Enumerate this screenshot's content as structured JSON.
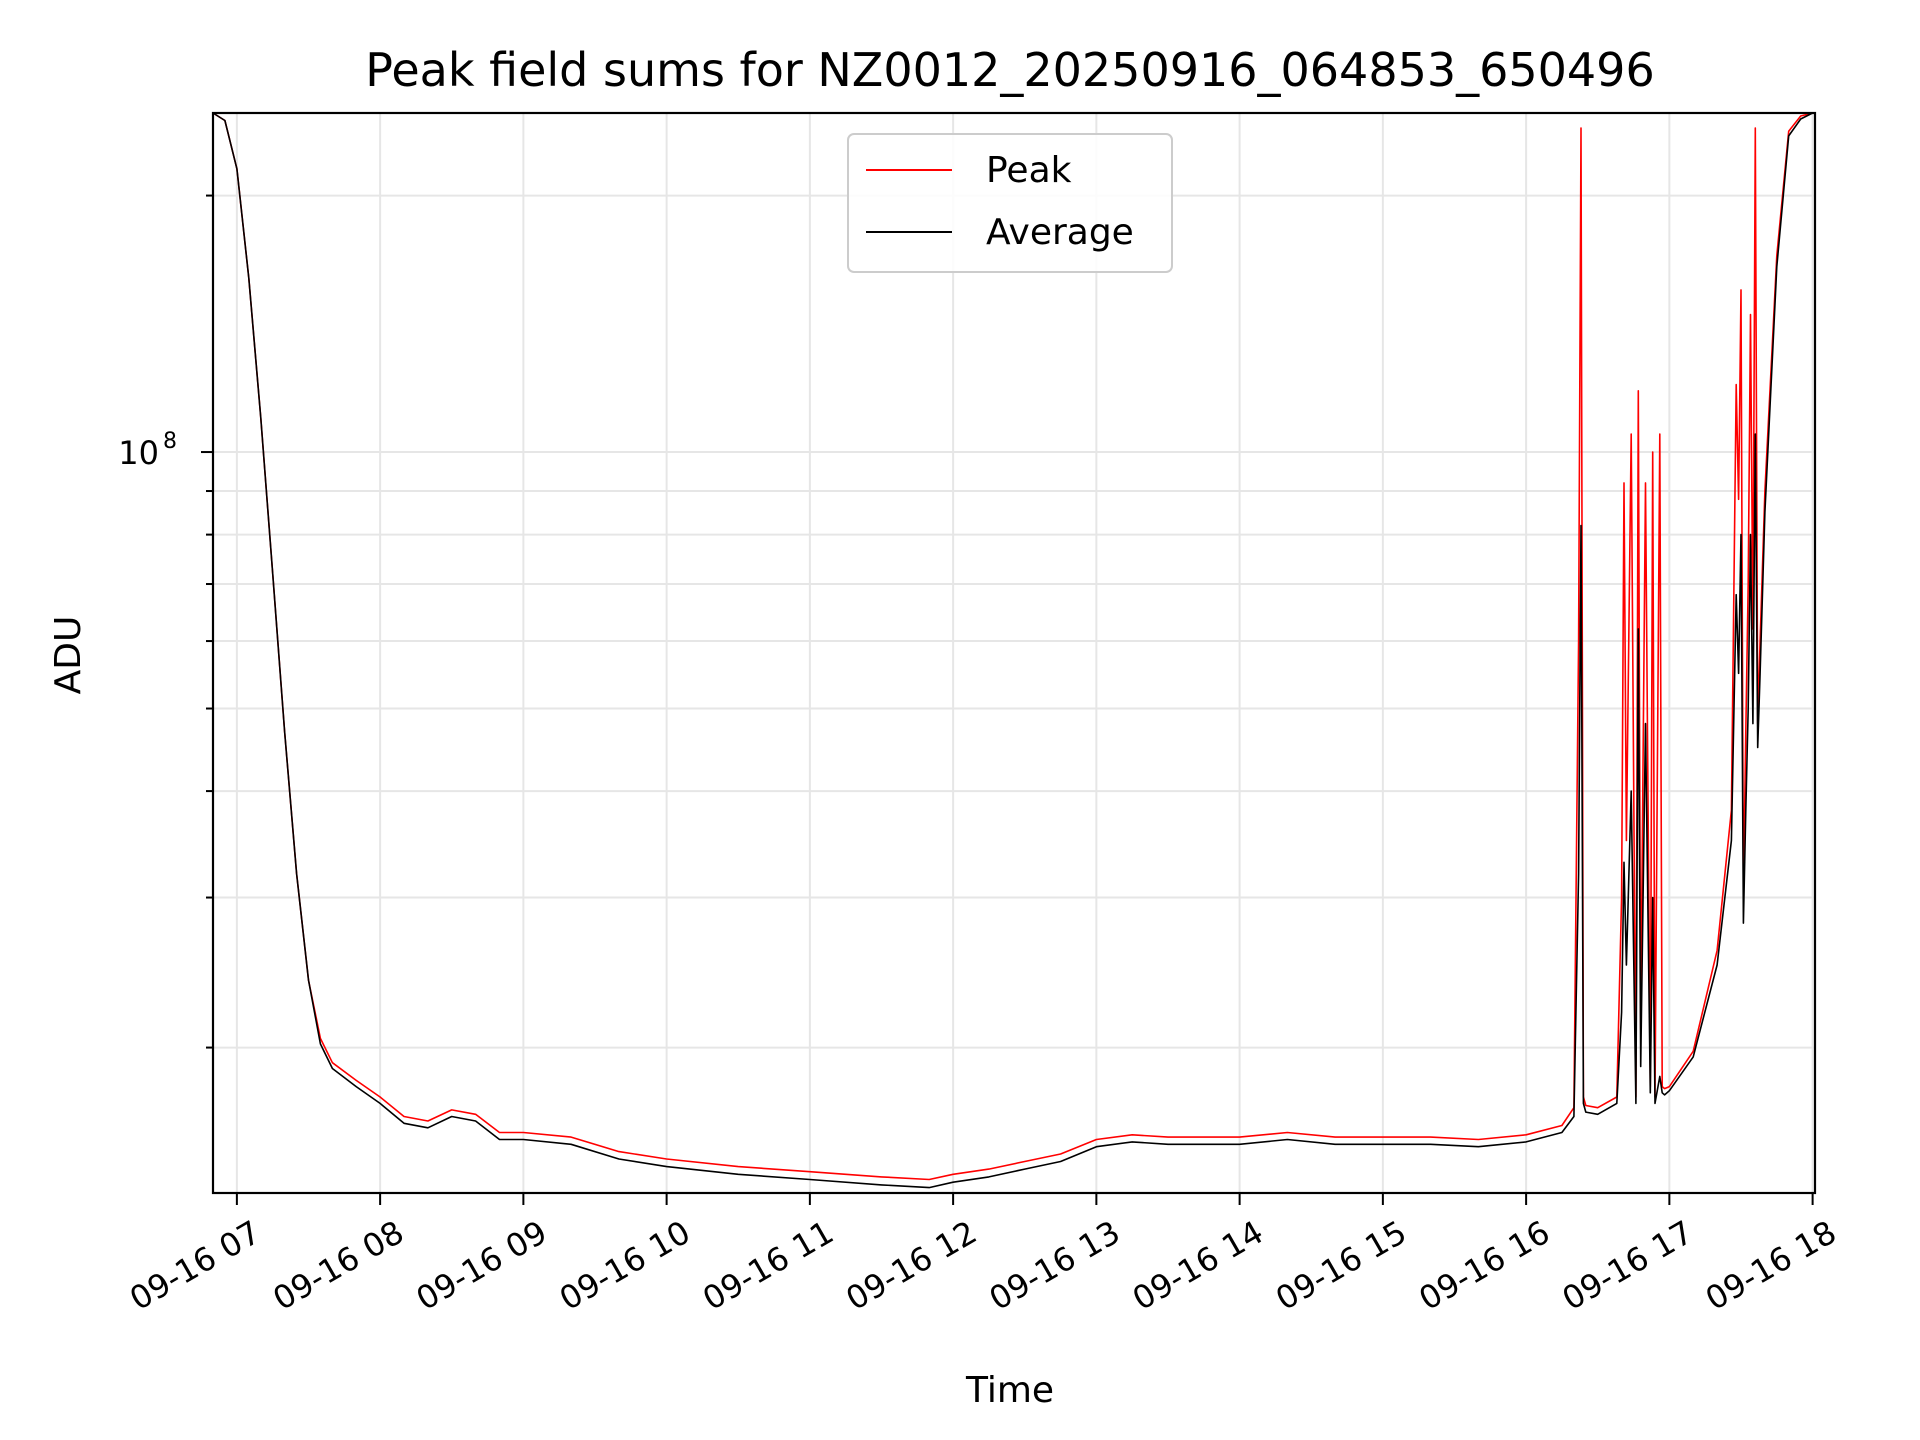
{
  "chart_data": {
    "type": "line",
    "title": "Peak field sums for NZ0012_20250916_064853_650496",
    "xlabel": "Time",
    "ylabel": "ADU",
    "y_scale": "log",
    "ylim": [
      13500000,
      250000000
    ],
    "xlim": [
      "09-16 06:50",
      "09-16 18:01"
    ],
    "grid": true,
    "legend_position": "top-center",
    "x_ticks": [
      "09-16 07",
      "09-16 08",
      "09-16 09",
      "09-16 10",
      "09-16 11",
      "09-16 12",
      "09-16 13",
      "09-16 14",
      "09-16 15",
      "09-16 16",
      "09-16 17",
      "09-16 18"
    ],
    "y_tick_base": "10",
    "y_tick_exponent": "8",
    "y_major_tick_value": 100000000,
    "series": [
      {
        "name": "Peak",
        "color": "#ff0000",
        "x": [
          "09-16 06:50",
          "09-16 06:55",
          "09-16 07:00",
          "09-16 07:05",
          "09-16 07:10",
          "09-16 07:15",
          "09-16 07:20",
          "09-16 07:25",
          "09-16 07:30",
          "09-16 07:35",
          "09-16 07:40",
          "09-16 07:50",
          "09-16 08:00",
          "09-16 08:10",
          "09-16 08:20",
          "09-16 08:30",
          "09-16 08:40",
          "09-16 08:50",
          "09-16 09:00",
          "09-16 09:20",
          "09-16 09:40",
          "09-16 10:00",
          "09-16 10:30",
          "09-16 11:00",
          "09-16 11:30",
          "09-16 11:50",
          "09-16 12:00",
          "09-16 12:15",
          "09-16 12:30",
          "09-16 12:45",
          "09-16 13:00",
          "09-16 13:15",
          "09-16 13:30",
          "09-16 14:00",
          "09-16 14:20",
          "09-16 14:40",
          "09-16 15:00",
          "09-16 15:20",
          "09-16 15:40",
          "09-16 16:00",
          "09-16 16:15",
          "09-16 16:20",
          "09-16 16:22",
          "09-16 16:23",
          "09-16 16:24",
          "09-16 16:25",
          "09-16 16:30",
          "09-16 16:38",
          "09-16 16:40",
          "09-16 16:41",
          "09-16 16:42",
          "09-16 16:44",
          "09-16 16:46",
          "09-16 16:47",
          "09-16 16:48",
          "09-16 16:50",
          "09-16 16:52",
          "09-16 16:53",
          "09-16 16:54",
          "09-16 16:56",
          "09-16 16:57",
          "09-16 16:58",
          "09-16 17:00",
          "09-16 17:10",
          "09-16 17:20",
          "09-16 17:26",
          "09-16 17:28",
          "09-16 17:29",
          "09-16 17:30",
          "09-16 17:31",
          "09-16 17:32",
          "09-16 17:33",
          "09-16 17:34",
          "09-16 17:35",
          "09-16 17:36",
          "09-16 17:37",
          "09-16 17:38",
          "09-16 17:40",
          "09-16 17:45",
          "09-16 17:50",
          "09-16 17:55",
          "09-16 18:00",
          "09-16 18:01"
        ],
        "y": [
          250000000,
          245000000,
          215000000,
          160000000,
          110000000,
          72000000,
          47000000,
          32000000,
          24000000,
          20500000,
          19200000,
          18300000,
          17500000,
          16600000,
          16400000,
          16900000,
          16700000,
          15900000,
          15900000,
          15700000,
          15100000,
          14800000,
          14500000,
          14300000,
          14100000,
          14000000,
          14200000,
          14400000,
          14700000,
          15000000,
          15600000,
          15800000,
          15700000,
          15700000,
          15900000,
          15700000,
          15700000,
          15700000,
          15600000,
          15800000,
          16200000,
          17000000,
          60000000,
          240000000,
          17500000,
          17100000,
          17000000,
          17500000,
          30000000,
          92000000,
          35000000,
          105000000,
          17500000,
          118000000,
          21000000,
          92000000,
          18000000,
          100000000,
          17500000,
          105000000,
          18000000,
          17900000,
          18000000,
          19800000,
          26000000,
          38000000,
          120000000,
          88000000,
          155000000,
          30000000,
          47000000,
          70000000,
          145000000,
          62000000,
          240000000,
          48000000,
          60000000,
          90000000,
          170000000,
          238000000,
          248000000,
          250000000,
          250000000
        ]
      },
      {
        "name": "Average",
        "color": "#000000",
        "x": [
          "09-16 06:50",
          "09-16 06:55",
          "09-16 07:00",
          "09-16 07:05",
          "09-16 07:10",
          "09-16 07:15",
          "09-16 07:20",
          "09-16 07:25",
          "09-16 07:30",
          "09-16 07:35",
          "09-16 07:40",
          "09-16 07:50",
          "09-16 08:00",
          "09-16 08:10",
          "09-16 08:20",
          "09-16 08:30",
          "09-16 08:40",
          "09-16 08:50",
          "09-16 09:00",
          "09-16 09:20",
          "09-16 09:40",
          "09-16 10:00",
          "09-16 10:30",
          "09-16 11:00",
          "09-16 11:30",
          "09-16 11:50",
          "09-16 12:00",
          "09-16 12:15",
          "09-16 12:30",
          "09-16 12:45",
          "09-16 13:00",
          "09-16 13:15",
          "09-16 13:30",
          "09-16 14:00",
          "09-16 14:20",
          "09-16 14:40",
          "09-16 15:00",
          "09-16 15:20",
          "09-16 15:40",
          "09-16 16:00",
          "09-16 16:15",
          "09-16 16:20",
          "09-16 16:22",
          "09-16 16:23",
          "09-16 16:24",
          "09-16 16:25",
          "09-16 16:30",
          "09-16 16:38",
          "09-16 16:40",
          "09-16 16:41",
          "09-16 16:42",
          "09-16 16:44",
          "09-16 16:46",
          "09-16 16:47",
          "09-16 16:48",
          "09-16 16:50",
          "09-16 16:52",
          "09-16 16:53",
          "09-16 16:54",
          "09-16 16:56",
          "09-16 16:57",
          "09-16 16:58",
          "09-16 17:00",
          "09-16 17:10",
          "09-16 17:20",
          "09-16 17:26",
          "09-16 17:28",
          "09-16 17:29",
          "09-16 17:30",
          "09-16 17:31",
          "09-16 17:32",
          "09-16 17:33",
          "09-16 17:34",
          "09-16 17:35",
          "09-16 17:36",
          "09-16 17:37",
          "09-16 17:38",
          "09-16 17:40",
          "09-16 17:45",
          "09-16 17:50",
          "09-16 17:55",
          "09-16 18:00",
          "09-16 18:01"
        ],
        "y": [
          250000000,
          245000000,
          215000000,
          160000000,
          110000000,
          72000000,
          47000000,
          32000000,
          24000000,
          20200000,
          18900000,
          18000000,
          17200000,
          16300000,
          16100000,
          16600000,
          16400000,
          15600000,
          15600000,
          15400000,
          14800000,
          14500000,
          14200000,
          14000000,
          13800000,
          13700000,
          13900000,
          14100000,
          14400000,
          14700000,
          15300000,
          15500000,
          15400000,
          15400000,
          15600000,
          15400000,
          15400000,
          15400000,
          15300000,
          15500000,
          15900000,
          16600000,
          32000000,
          82000000,
          17200000,
          16800000,
          16700000,
          17200000,
          22000000,
          33000000,
          25000000,
          40000000,
          17200000,
          62000000,
          19000000,
          48000000,
          17700000,
          30000000,
          17200000,
          18500000,
          17700000,
          17600000,
          17800000,
          19500000,
          25000000,
          35000000,
          68000000,
          55000000,
          80000000,
          28000000,
          38000000,
          50000000,
          80000000,
          48000000,
          105000000,
          45000000,
          55000000,
          85000000,
          165000000,
          235000000,
          246000000,
          250000000,
          250000000
        ]
      }
    ]
  }
}
